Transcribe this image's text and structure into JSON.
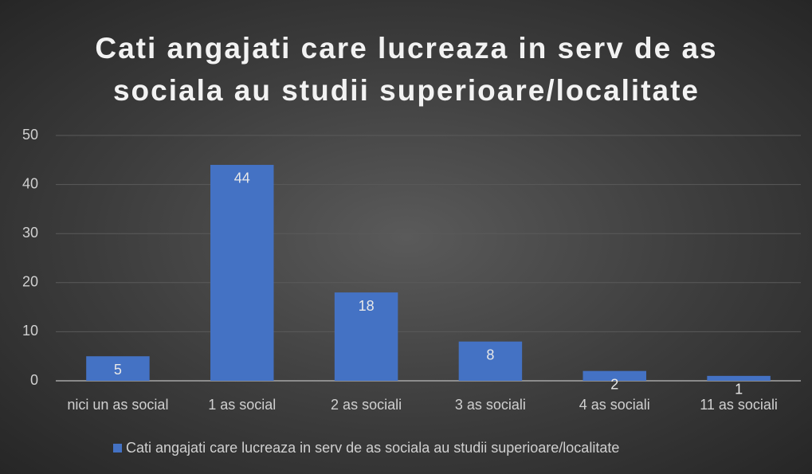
{
  "chart_data": {
    "type": "bar",
    "title": "Cati angajati care lucreaza in serv de as sociala au studii superioare/localitate",
    "categories": [
      "nici un as social",
      "1 as social",
      "2 as sociali",
      "3 as sociali",
      "4 as sociali",
      "11 as sociali"
    ],
    "series": [
      {
        "name": "Cati angajati care lucreaza in serv de as sociala au studii superioare/localitate",
        "color": "#4472c4",
        "values": [
          5,
          44,
          18,
          8,
          2,
          1
        ]
      }
    ],
    "ylim": [
      0,
      50
    ],
    "yticks": [
      0,
      10,
      20,
      30,
      40,
      50
    ],
    "grid": true,
    "legend": "bottom"
  }
}
